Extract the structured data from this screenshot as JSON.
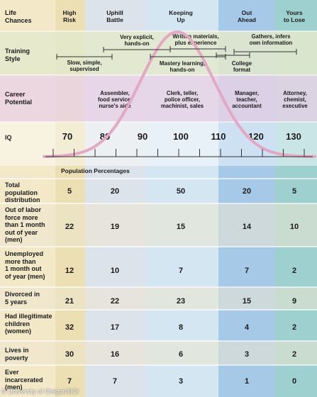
{
  "columns": [
    {
      "label": "High\nRisk"
    },
    {
      "label": "Uphill\nBattle"
    },
    {
      "label": "Keeping\nUp"
    },
    {
      "label": "Out\nAhead"
    },
    {
      "label": "Yours\nto Lose"
    }
  ],
  "headers": {
    "life_chances": "Life\nChances",
    "training_style": "Training\nStyle",
    "career_potential": "Career\nPotential",
    "iq": "IQ"
  },
  "training": [
    {
      "label": "Slow, simple,\nsupervised"
    },
    {
      "label": "Very explicit,\nhands-on"
    },
    {
      "label": "Written materials,\nplus experience"
    },
    {
      "label": "Gathers, infers\nown information"
    },
    {
      "label": "Mastery learning,\nhands-on"
    },
    {
      "label": "College\nformat"
    }
  ],
  "careers": [
    {
      "label": "Assembler,\nfood service,\nnurse's aide"
    },
    {
      "label": "Clerk, teller,\npolice officer,\nmachinist, sales"
    },
    {
      "label": "Manager,\nteacher,\naccountant"
    },
    {
      "label": "Attorney,\nchemist,\nexecutive"
    }
  ],
  "iq_ticks": [
    "70",
    "80",
    "90",
    "100",
    "110",
    "120",
    "130"
  ],
  "population_heading": "Population Percentages",
  "rows": [
    {
      "label": "Total\npopulation\ndistribution",
      "values": [
        "5",
        "20",
        "50",
        "20",
        "5"
      ]
    },
    {
      "label": "Out of labor\nforce more\nthan 1 month\nout of year\n(men)",
      "values": [
        "22",
        "19",
        "15",
        "14",
        "10"
      ]
    },
    {
      "label": "Unemployed\nmore than\n1 month out\nof year (men)",
      "values": [
        "12",
        "10",
        "7",
        "7",
        "2"
      ]
    },
    {
      "label": "Divorced in\n5 years",
      "values": [
        "21",
        "22",
        "23",
        "15",
        "9"
      ]
    },
    {
      "label": "Had illegitimate\nchildren\n(women)",
      "values": [
        "32",
        "17",
        "8",
        "4",
        "2"
      ]
    },
    {
      "label": "Lives in\npoverty",
      "values": [
        "30",
        "16",
        "6",
        "3",
        "2"
      ]
    },
    {
      "label": "Ever\nincarcerated\n(men)",
      "values": [
        "7",
        "7",
        "3",
        "1",
        "0"
      ]
    }
  ],
  "credit": "© University of Oregon/BGI",
  "colors": {
    "col_label": "#f3e9c8",
    "col_high": "#ecdfb3",
    "col_uphill": "#dde3ea",
    "col_keeping": "#d3e6f1",
    "col_out": "#a7c9e8",
    "col_yours": "#9ed0cf",
    "band_training": "#e4e9cd",
    "band_career": "#ead2e6",
    "curve": "#e2a8c4",
    "row_alt": "#ece6cf"
  }
}
